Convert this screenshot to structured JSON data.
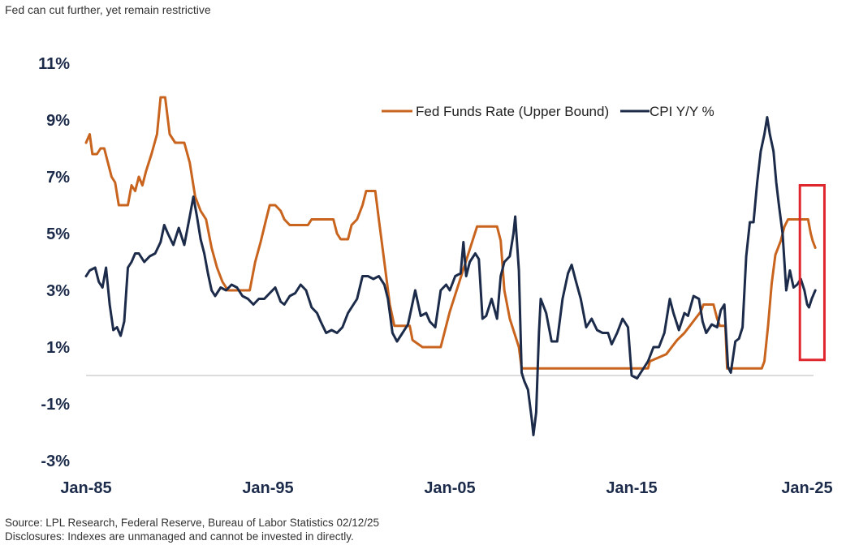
{
  "header": {
    "title": "Fed can cut further, yet remain restrictive"
  },
  "footer": {
    "source": "Source: LPL Research, Federal Reserve, Bureau of Labor Statistics 02/12/25",
    "disclosure": "Disclosures: Indexes are unmanaged and cannot be invested in directly."
  },
  "chart_data": {
    "type": "line",
    "title": "",
    "xlabel": "",
    "ylabel": "",
    "xlim": [
      1985.0,
      2025.0
    ],
    "ylim": [
      -3,
      11
    ],
    "x_ticks": [
      {
        "value": 1985.0,
        "label": "Jan-85"
      },
      {
        "value": 1995.0,
        "label": "Jan-95"
      },
      {
        "value": 2005.0,
        "label": "Jan-05"
      },
      {
        "value": 2015.0,
        "label": "Jan-15"
      },
      {
        "value": 2025.0,
        "label": "Jan-25"
      }
    ],
    "y_ticks": [
      {
        "value": 11,
        "label": "11%"
      },
      {
        "value": 9,
        "label": "9%"
      },
      {
        "value": 7,
        "label": "7%"
      },
      {
        "value": 5,
        "label": "5%"
      },
      {
        "value": 3,
        "label": "3%"
      },
      {
        "value": 1,
        "label": "1%"
      },
      {
        "value": -1,
        "label": "-1%"
      },
      {
        "value": -3,
        "label": "-3%"
      }
    ],
    "grid": false,
    "zero_line": true,
    "legend": "top-right",
    "highlight_box": {
      "x": [
        2024.25,
        2025.6
      ],
      "y": [
        0.55,
        6.7
      ],
      "color": "#e0262d"
    },
    "series": [
      {
        "name": "Fed Funds Rate (Upper Bound)",
        "color": "#c8641e",
        "points": [
          [
            1985.0,
            8.2
          ],
          [
            1985.2,
            8.5
          ],
          [
            1985.35,
            7.8
          ],
          [
            1985.6,
            7.8
          ],
          [
            1985.8,
            8.0
          ],
          [
            1986.0,
            8.0
          ],
          [
            1986.2,
            7.5
          ],
          [
            1986.4,
            7.0
          ],
          [
            1986.6,
            6.8
          ],
          [
            1986.8,
            6.0
          ],
          [
            1987.3,
            6.0
          ],
          [
            1987.5,
            6.7
          ],
          [
            1987.7,
            6.5
          ],
          [
            1987.9,
            7.0
          ],
          [
            1988.1,
            6.7
          ],
          [
            1988.3,
            7.2
          ],
          [
            1988.6,
            7.8
          ],
          [
            1988.9,
            8.5
          ],
          [
            1989.1,
            9.8
          ],
          [
            1989.35,
            9.8
          ],
          [
            1989.6,
            8.5
          ],
          [
            1989.9,
            8.2
          ],
          [
            1990.4,
            8.2
          ],
          [
            1990.7,
            7.5
          ],
          [
            1991.0,
            6.3
          ],
          [
            1991.3,
            5.8
          ],
          [
            1991.6,
            5.5
          ],
          [
            1991.9,
            4.5
          ],
          [
            1992.2,
            3.8
          ],
          [
            1992.5,
            3.3
          ],
          [
            1992.8,
            3.0
          ],
          [
            1994.0,
            3.0
          ],
          [
            1994.3,
            4.0
          ],
          [
            1994.6,
            4.7
          ],
          [
            1994.9,
            5.5
          ],
          [
            1995.1,
            6.0
          ],
          [
            1995.4,
            6.0
          ],
          [
            1995.7,
            5.8
          ],
          [
            1995.9,
            5.5
          ],
          [
            1996.2,
            5.3
          ],
          [
            1997.2,
            5.3
          ],
          [
            1997.4,
            5.5
          ],
          [
            1998.6,
            5.5
          ],
          [
            1998.8,
            5.0
          ],
          [
            1999.0,
            4.8
          ],
          [
            1999.4,
            4.8
          ],
          [
            1999.6,
            5.3
          ],
          [
            1999.9,
            5.5
          ],
          [
            2000.2,
            6.0
          ],
          [
            2000.4,
            6.5
          ],
          [
            2000.9,
            6.5
          ],
          [
            2001.1,
            5.5
          ],
          [
            2001.4,
            4.0
          ],
          [
            2001.7,
            2.5
          ],
          [
            2001.95,
            1.75
          ],
          [
            2002.8,
            1.75
          ],
          [
            2002.95,
            1.25
          ],
          [
            2003.5,
            1.0
          ],
          [
            2004.5,
            1.0
          ],
          [
            2004.7,
            1.5
          ],
          [
            2005.0,
            2.25
          ],
          [
            2005.5,
            3.25
          ],
          [
            2006.0,
            4.25
          ],
          [
            2006.5,
            5.25
          ],
          [
            2007.6,
            5.25
          ],
          [
            2007.8,
            4.75
          ],
          [
            2008.0,
            3.0
          ],
          [
            2008.3,
            2.0
          ],
          [
            2008.8,
            1.0
          ],
          [
            2008.95,
            0.25
          ],
          [
            2015.9,
            0.25
          ],
          [
            2016.0,
            0.5
          ],
          [
            2016.9,
            0.75
          ],
          [
            2017.2,
            1.0
          ],
          [
            2017.5,
            1.25
          ],
          [
            2017.9,
            1.5
          ],
          [
            2018.2,
            1.75
          ],
          [
            2018.5,
            2.0
          ],
          [
            2018.8,
            2.25
          ],
          [
            2018.95,
            2.5
          ],
          [
            2019.5,
            2.5
          ],
          [
            2019.7,
            2.0
          ],
          [
            2019.85,
            1.75
          ],
          [
            2020.15,
            1.75
          ],
          [
            2020.25,
            0.25
          ],
          [
            2022.15,
            0.25
          ],
          [
            2022.3,
            0.5
          ],
          [
            2022.5,
            1.75
          ],
          [
            2022.7,
            3.25
          ],
          [
            2022.9,
            4.25
          ],
          [
            2023.2,
            4.75
          ],
          [
            2023.4,
            5.25
          ],
          [
            2023.6,
            5.5
          ],
          [
            2024.7,
            5.5
          ],
          [
            2024.85,
            5.0
          ],
          [
            2024.95,
            4.75
          ],
          [
            2025.1,
            4.5
          ]
        ]
      },
      {
        "name": "CPI Y/Y %",
        "color": "#1c2b4a",
        "points": [
          [
            1985.0,
            3.5
          ],
          [
            1985.2,
            3.7
          ],
          [
            1985.5,
            3.8
          ],
          [
            1985.7,
            3.3
          ],
          [
            1985.9,
            3.1
          ],
          [
            1986.1,
            3.8
          ],
          [
            1986.3,
            2.5
          ],
          [
            1986.5,
            1.6
          ],
          [
            1986.7,
            1.7
          ],
          [
            1986.9,
            1.4
          ],
          [
            1987.1,
            1.9
          ],
          [
            1987.3,
            3.8
          ],
          [
            1987.5,
            4.0
          ],
          [
            1987.7,
            4.3
          ],
          [
            1987.9,
            4.3
          ],
          [
            1988.2,
            4.0
          ],
          [
            1988.5,
            4.2
          ],
          [
            1988.8,
            4.3
          ],
          [
            1989.1,
            4.7
          ],
          [
            1989.3,
            5.3
          ],
          [
            1989.5,
            5.0
          ],
          [
            1989.8,
            4.6
          ],
          [
            1990.1,
            5.2
          ],
          [
            1990.4,
            4.6
          ],
          [
            1990.7,
            5.6
          ],
          [
            1990.9,
            6.3
          ],
          [
            1991.1,
            5.6
          ],
          [
            1991.3,
            4.8
          ],
          [
            1991.5,
            4.3
          ],
          [
            1991.7,
            3.6
          ],
          [
            1991.9,
            3.0
          ],
          [
            1992.1,
            2.8
          ],
          [
            1992.4,
            3.1
          ],
          [
            1992.7,
            3.0
          ],
          [
            1993.0,
            3.2
          ],
          [
            1993.3,
            3.1
          ],
          [
            1993.6,
            2.8
          ],
          [
            1993.9,
            2.7
          ],
          [
            1994.2,
            2.5
          ],
          [
            1994.5,
            2.7
          ],
          [
            1994.8,
            2.7
          ],
          [
            1995.1,
            2.9
          ],
          [
            1995.4,
            3.1
          ],
          [
            1995.7,
            2.6
          ],
          [
            1995.9,
            2.5
          ],
          [
            1996.2,
            2.8
          ],
          [
            1996.5,
            2.9
          ],
          [
            1996.8,
            3.2
          ],
          [
            1997.1,
            3.0
          ],
          [
            1997.4,
            2.4
          ],
          [
            1997.7,
            2.2
          ],
          [
            1997.9,
            1.9
          ],
          [
            1998.2,
            1.5
          ],
          [
            1998.5,
            1.6
          ],
          [
            1998.8,
            1.5
          ],
          [
            1999.1,
            1.7
          ],
          [
            1999.4,
            2.2
          ],
          [
            1999.7,
            2.5
          ],
          [
            1999.9,
            2.7
          ],
          [
            2000.2,
            3.5
          ],
          [
            2000.5,
            3.5
          ],
          [
            2000.8,
            3.4
          ],
          [
            2001.1,
            3.5
          ],
          [
            2001.4,
            3.2
          ],
          [
            2001.6,
            2.7
          ],
          [
            2001.85,
            1.5
          ],
          [
            2002.1,
            1.2
          ],
          [
            2002.4,
            1.5
          ],
          [
            2002.7,
            1.8
          ],
          [
            2002.9,
            2.4
          ],
          [
            2003.1,
            3.0
          ],
          [
            2003.4,
            2.1
          ],
          [
            2003.7,
            2.2
          ],
          [
            2003.9,
            1.9
          ],
          [
            2004.2,
            1.7
          ],
          [
            2004.5,
            3.0
          ],
          [
            2004.8,
            3.2
          ],
          [
            2005.0,
            3.0
          ],
          [
            2005.3,
            3.5
          ],
          [
            2005.6,
            3.6
          ],
          [
            2005.75,
            4.7
          ],
          [
            2005.9,
            3.5
          ],
          [
            2006.1,
            4.0
          ],
          [
            2006.4,
            4.3
          ],
          [
            2006.6,
            4.1
          ],
          [
            2006.8,
            2.0
          ],
          [
            2007.0,
            2.1
          ],
          [
            2007.3,
            2.7
          ],
          [
            2007.6,
            2.0
          ],
          [
            2007.8,
            3.5
          ],
          [
            2008.0,
            4.0
          ],
          [
            2008.3,
            4.2
          ],
          [
            2008.5,
            5.0
          ],
          [
            2008.6,
            5.6
          ],
          [
            2008.8,
            3.7
          ],
          [
            2008.95,
            0.1
          ],
          [
            2009.1,
            -0.2
          ],
          [
            2009.3,
            -0.5
          ],
          [
            2009.5,
            -1.5
          ],
          [
            2009.6,
            -2.1
          ],
          [
            2009.75,
            -1.3
          ],
          [
            2009.9,
            1.5
          ],
          [
            2010.0,
            2.7
          ],
          [
            2010.3,
            2.2
          ],
          [
            2010.6,
            1.2
          ],
          [
            2010.9,
            1.2
          ],
          [
            2011.2,
            2.7
          ],
          [
            2011.5,
            3.6
          ],
          [
            2011.7,
            3.9
          ],
          [
            2011.9,
            3.4
          ],
          [
            2012.2,
            2.7
          ],
          [
            2012.5,
            1.7
          ],
          [
            2012.8,
            2.0
          ],
          [
            2013.1,
            1.6
          ],
          [
            2013.4,
            1.5
          ],
          [
            2013.7,
            1.5
          ],
          [
            2013.9,
            1.1
          ],
          [
            2014.2,
            1.5
          ],
          [
            2014.5,
            2.0
          ],
          [
            2014.8,
            1.7
          ],
          [
            2015.0,
            0.0
          ],
          [
            2015.3,
            -0.1
          ],
          [
            2015.6,
            0.2
          ],
          [
            2015.9,
            0.5
          ],
          [
            2016.2,
            1.0
          ],
          [
            2016.5,
            1.0
          ],
          [
            2016.8,
            1.5
          ],
          [
            2017.1,
            2.7
          ],
          [
            2017.3,
            2.2
          ],
          [
            2017.6,
            1.6
          ],
          [
            2017.9,
            2.2
          ],
          [
            2018.1,
            2.1
          ],
          [
            2018.4,
            2.8
          ],
          [
            2018.7,
            2.7
          ],
          [
            2018.9,
            1.9
          ],
          [
            2019.1,
            1.5
          ],
          [
            2019.4,
            1.8
          ],
          [
            2019.7,
            1.7
          ],
          [
            2019.9,
            2.3
          ],
          [
            2020.1,
            2.5
          ],
          [
            2020.3,
            0.3
          ],
          [
            2020.45,
            0.1
          ],
          [
            2020.7,
            1.2
          ],
          [
            2020.9,
            1.3
          ],
          [
            2021.1,
            1.7
          ],
          [
            2021.3,
            4.2
          ],
          [
            2021.5,
            5.4
          ],
          [
            2021.7,
            5.4
          ],
          [
            2021.9,
            6.8
          ],
          [
            2022.1,
            7.9
          ],
          [
            2022.3,
            8.5
          ],
          [
            2022.45,
            9.1
          ],
          [
            2022.6,
            8.5
          ],
          [
            2022.8,
            7.9
          ],
          [
            2022.95,
            6.8
          ],
          [
            2023.1,
            6.0
          ],
          [
            2023.3,
            5.0
          ],
          [
            2023.5,
            3.0
          ],
          [
            2023.7,
            3.7
          ],
          [
            2023.9,
            3.1
          ],
          [
            2024.1,
            3.2
          ],
          [
            2024.3,
            3.4
          ],
          [
            2024.5,
            3.0
          ],
          [
            2024.65,
            2.5
          ],
          [
            2024.75,
            2.4
          ],
          [
            2024.9,
            2.7
          ],
          [
            2025.1,
            3.0
          ]
        ]
      }
    ]
  }
}
